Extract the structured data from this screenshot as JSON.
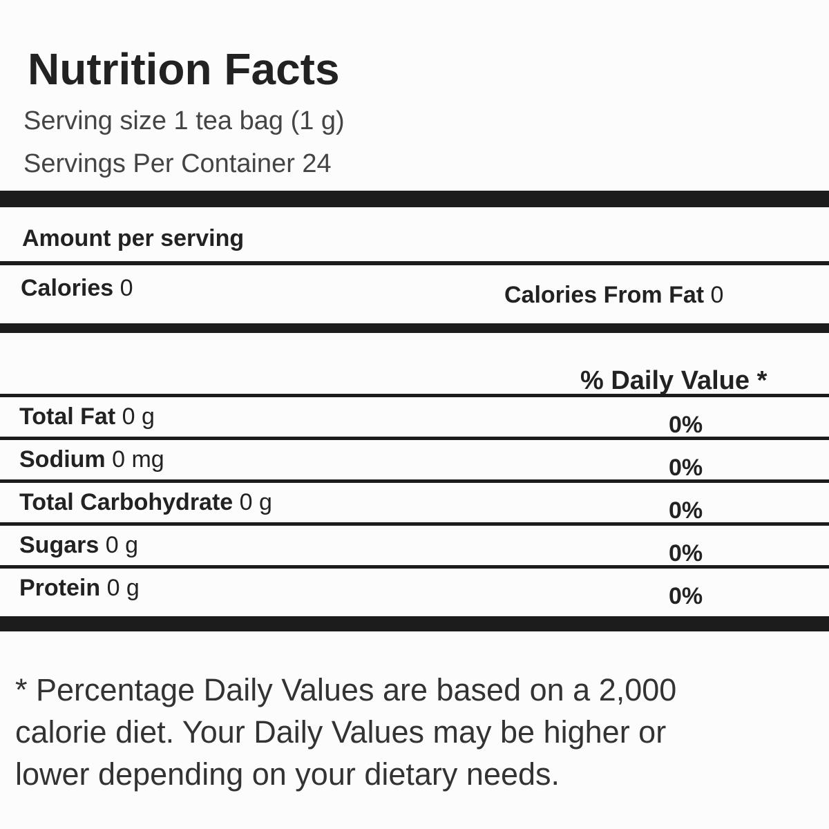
{
  "title": "Nutrition Facts",
  "serving_size": "Serving size 1 tea bag (1 g)",
  "servings_per_container": "Servings Per Container 24",
  "amount_per_serving": "Amount per serving",
  "calories": {
    "label": "Calories",
    "amount": "0"
  },
  "calories_from_fat": {
    "label": "Calories From Fat",
    "amount": "0"
  },
  "daily_value_header": "% Daily Value *",
  "nutrients": [
    {
      "name": "Total Fat",
      "amount": "0 g",
      "daily_value": "0%"
    },
    {
      "name": "Sodium",
      "amount": "0 mg",
      "daily_value": "0%"
    },
    {
      "name": "Total Carbohydrate",
      "amount": "0 g",
      "daily_value": "0%"
    },
    {
      "name": "Sugars",
      "amount": "0 g",
      "daily_value": "0%"
    },
    {
      "name": "Protein",
      "amount": "0 g",
      "daily_value": "0%"
    }
  ],
  "footnote": "* Percentage Daily Values are based on a 2,000 calorie diet. Your Daily Values may be higher or lower depending on your dietary needs."
}
